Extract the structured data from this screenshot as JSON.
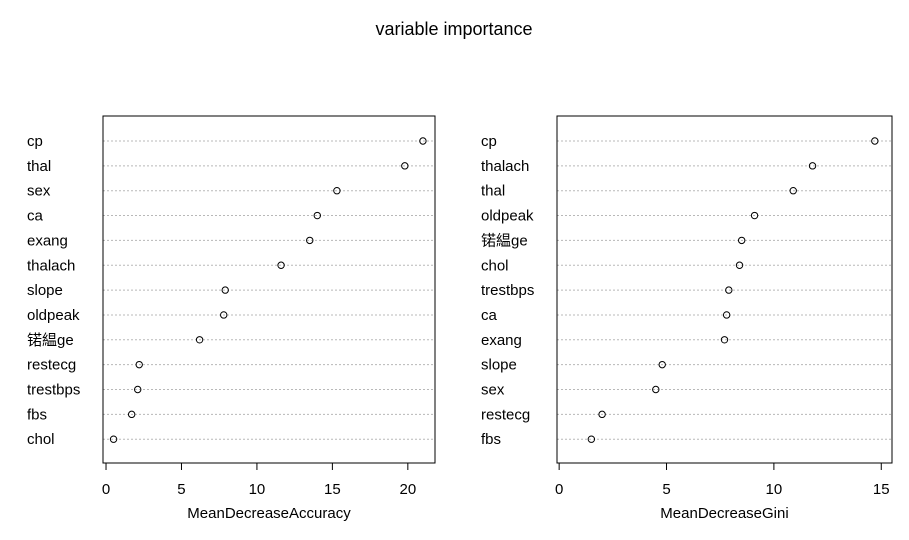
{
  "figure": {
    "title": "variable importance"
  },
  "chart_data": [
    {
      "type": "scatter",
      "style": "dotchart",
      "xlabel": "MeanDecreaseAccuracy",
      "xlim": [
        -0.2,
        21.8
      ],
      "xticks": [
        0,
        5,
        10,
        15,
        20
      ],
      "grid": "horizontal dotted",
      "categories": [
        "cp",
        "thal",
        "sex",
        "ca",
        "exang",
        "thalach",
        "slope",
        "oldpeak",
        "锘緼ge",
        "restecg",
        "trestbps",
        "fbs",
        "chol"
      ],
      "values": [
        21.0,
        19.8,
        15.3,
        14.0,
        13.5,
        11.6,
        7.9,
        7.8,
        6.2,
        2.2,
        2.1,
        1.7,
        0.5
      ]
    },
    {
      "type": "scatter",
      "style": "dotchart",
      "xlabel": "MeanDecreaseGini",
      "xlim": [
        -0.1,
        15.5
      ],
      "xticks": [
        0,
        5,
        10,
        15
      ],
      "grid": "horizontal dotted",
      "categories": [
        "cp",
        "thalach",
        "thal",
        "oldpeak",
        "锘緼ge",
        "chol",
        "trestbps",
        "ca",
        "exang",
        "slope",
        "sex",
        "restecg",
        "fbs"
      ],
      "values": [
        14.7,
        11.8,
        10.9,
        9.1,
        8.5,
        8.4,
        7.9,
        7.8,
        7.7,
        4.8,
        4.5,
        2.0,
        1.5
      ]
    }
  ]
}
